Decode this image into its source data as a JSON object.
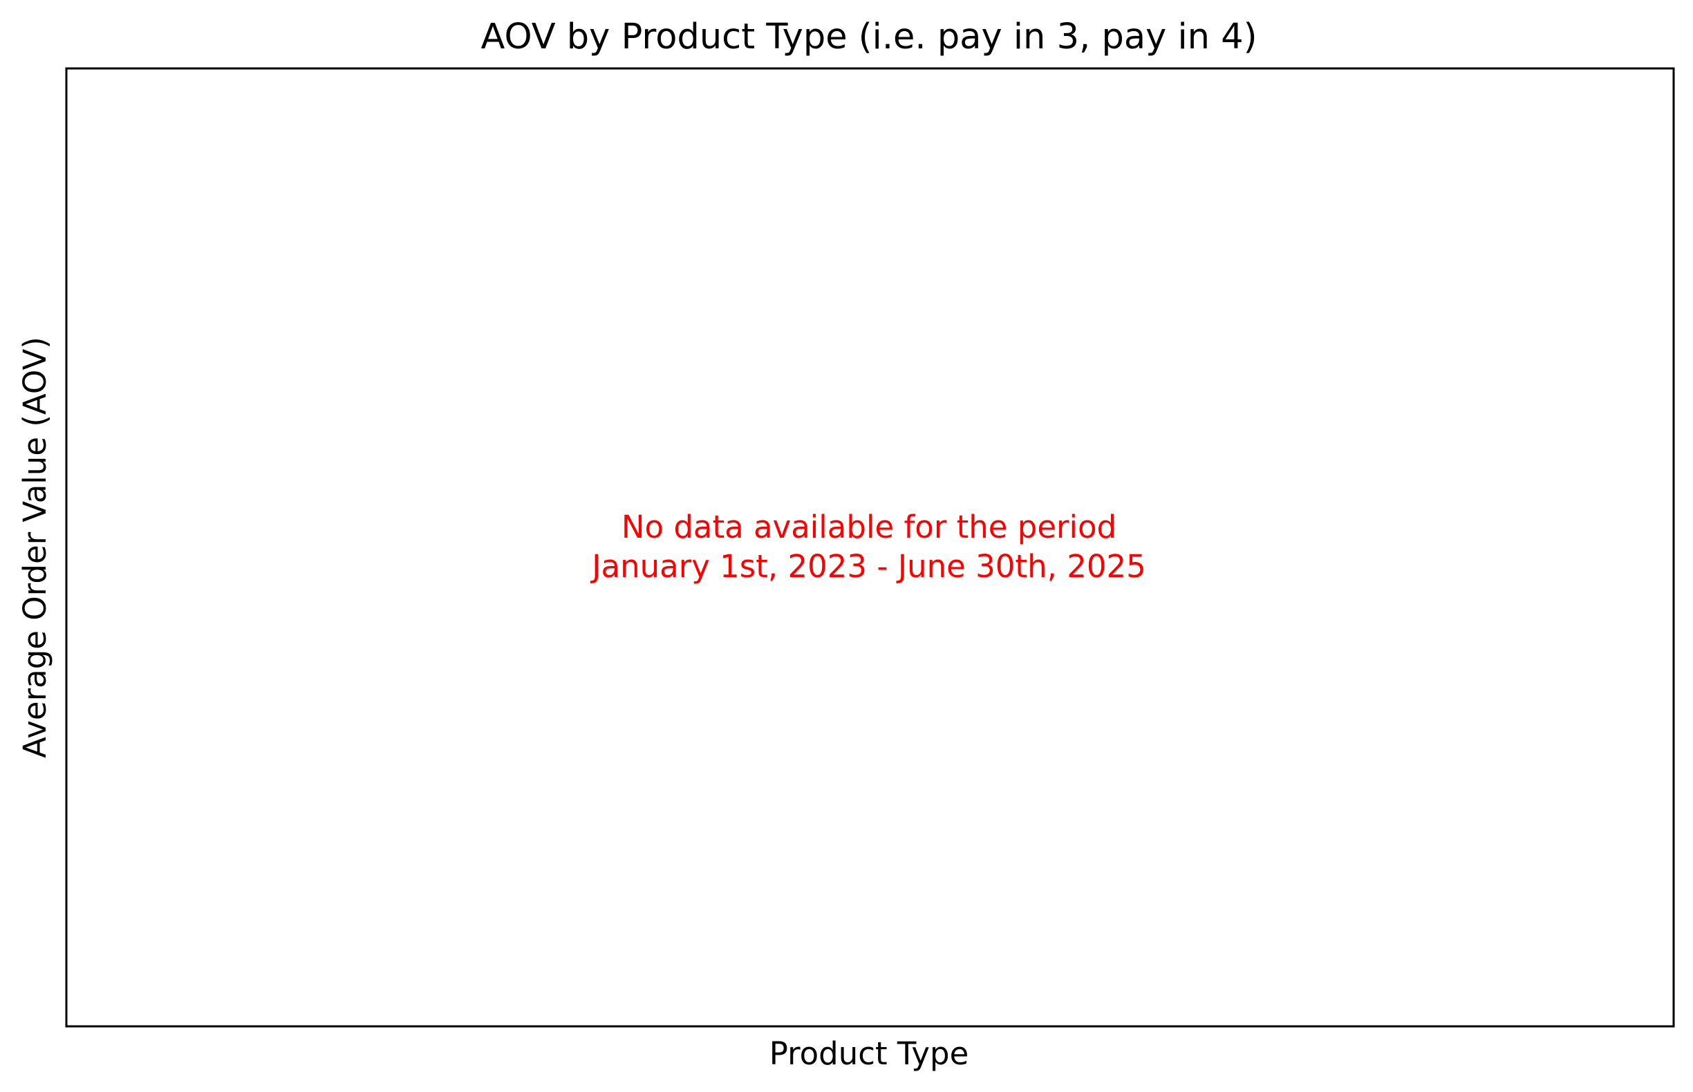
{
  "chart_data": {
    "type": "bar",
    "title": "AOV by Product Type (i.e. pay in 3, pay in 4)",
    "xlabel": "Product Type",
    "ylabel": "Average Order Value (AOV)",
    "categories": [],
    "values": [],
    "grid": false,
    "legend": "none",
    "annotation": {
      "line1": "No data available for the period",
      "line2": "January 1st, 2023 - June 30th, 2025",
      "color": "#ff0000"
    }
  }
}
